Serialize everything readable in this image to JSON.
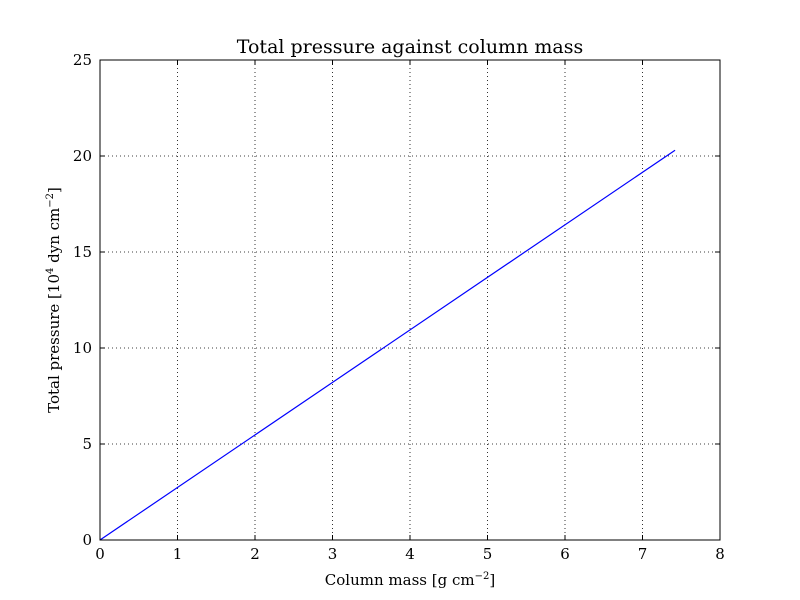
{
  "chart_data": {
    "type": "line",
    "title": "Total pressure against column mass",
    "xlabel": "Column mass [g cm",
    "xlabel_sup": "−2",
    "xlabel_end": "]",
    "ylabel": "Total pressure [10",
    "ylabel_sup1": "4",
    "ylabel_mid": " dyn cm",
    "ylabel_sup2": "−2",
    "ylabel_end": "]",
    "xlim": [
      0,
      8
    ],
    "ylim": [
      0,
      25
    ],
    "xticks": [
      0,
      1,
      2,
      3,
      4,
      5,
      6,
      7,
      8
    ],
    "yticks": [
      0,
      5,
      10,
      15,
      20,
      25
    ],
    "grid": true,
    "series": [
      {
        "x": [
          0,
          7.42
        ],
        "y": [
          0,
          20.3
        ],
        "color": "#0000ff"
      }
    ]
  }
}
